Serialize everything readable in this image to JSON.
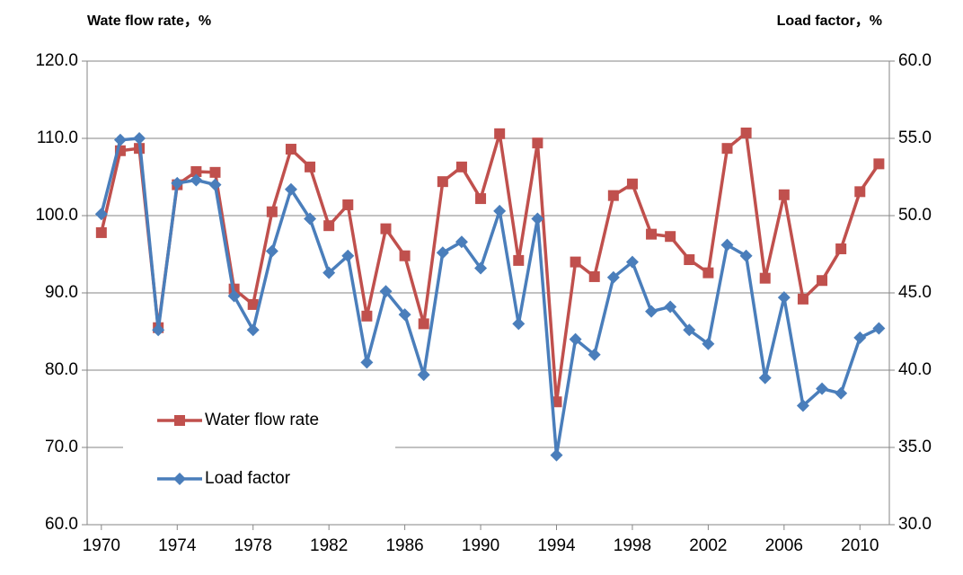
{
  "chart_data": {
    "type": "line",
    "y_axis_title": "Wate flow rate，%",
    "y2_axis_title": "Load factor，%",
    "x": [
      1970,
      1971,
      1972,
      1973,
      1974,
      1975,
      1976,
      1977,
      1978,
      1979,
      1980,
      1981,
      1982,
      1983,
      1984,
      1985,
      1986,
      1987,
      1988,
      1989,
      1990,
      1991,
      1992,
      1993,
      1994,
      1995,
      1996,
      1997,
      1998,
      1999,
      2000,
      2001,
      2002,
      2003,
      2004,
      2005,
      2006,
      2007,
      2008,
      2009,
      2010,
      2011
    ],
    "series": [
      {
        "name": "Water flow rate",
        "color": "#c0504d",
        "marker": "square",
        "values": [
          97.8,
          108.4,
          108.7,
          85.5,
          104.0,
          105.7,
          105.6,
          90.5,
          88.5,
          100.5,
          108.6,
          106.3,
          98.7,
          101.4,
          87.0,
          98.3,
          94.8,
          86.0,
          104.4,
          106.3,
          102.2,
          110.6,
          94.2,
          109.4,
          75.9,
          94.0,
          92.1,
          102.6,
          104.1,
          97.6,
          97.3,
          94.3,
          92.6,
          108.7,
          110.7,
          91.9,
          102.7,
          89.2,
          91.6,
          95.7,
          103.1,
          106.7
        ]
      },
      {
        "name": "Load factor",
        "color": "#4a7ebb",
        "marker": "diamond",
        "axis": "y2",
        "values": [
          50.1,
          54.9,
          55.0,
          42.6,
          52.1,
          52.3,
          52.0,
          44.8,
          42.6,
          47.7,
          51.7,
          49.8,
          46.3,
          47.4,
          40.5,
          45.1,
          43.6,
          39.7,
          47.6,
          48.3,
          46.6,
          50.3,
          43.0,
          49.8,
          34.5,
          42.0,
          41.0,
          46.0,
          47.0,
          43.8,
          44.1,
          42.6,
          41.7,
          48.1,
          47.4,
          39.5,
          44.7,
          37.7,
          38.8,
          38.5,
          42.1,
          42.7
        ]
      }
    ],
    "xlim": [
      1969.25,
      2011.55
    ],
    "xticks": [
      1970,
      1974,
      1978,
      1982,
      1986,
      1990,
      1994,
      1998,
      2002,
      2006,
      2010
    ],
    "ylim": [
      60,
      120
    ],
    "yticks": [
      {
        "value": 60,
        "label": "60.0"
      },
      {
        "value": 70,
        "label": "70.0"
      },
      {
        "value": 80,
        "label": "80.0"
      },
      {
        "value": 90,
        "label": "90.0"
      },
      {
        "value": 100,
        "label": "100.0"
      },
      {
        "value": 110,
        "label": "110.0"
      },
      {
        "value": 120,
        "label": "120.0"
      }
    ],
    "y2lim": [
      30,
      60
    ],
    "y2ticks": [
      {
        "value": 30,
        "label": "30.0"
      },
      {
        "value": 35,
        "label": "35.0"
      },
      {
        "value": 40,
        "label": "40.0"
      },
      {
        "value": 45,
        "label": "45.0"
      },
      {
        "value": 50,
        "label": "50.0"
      },
      {
        "value": 55,
        "label": "55.0"
      },
      {
        "value": 60,
        "label": "60.0"
      }
    ],
    "grid": true,
    "legend": "lower-left"
  }
}
